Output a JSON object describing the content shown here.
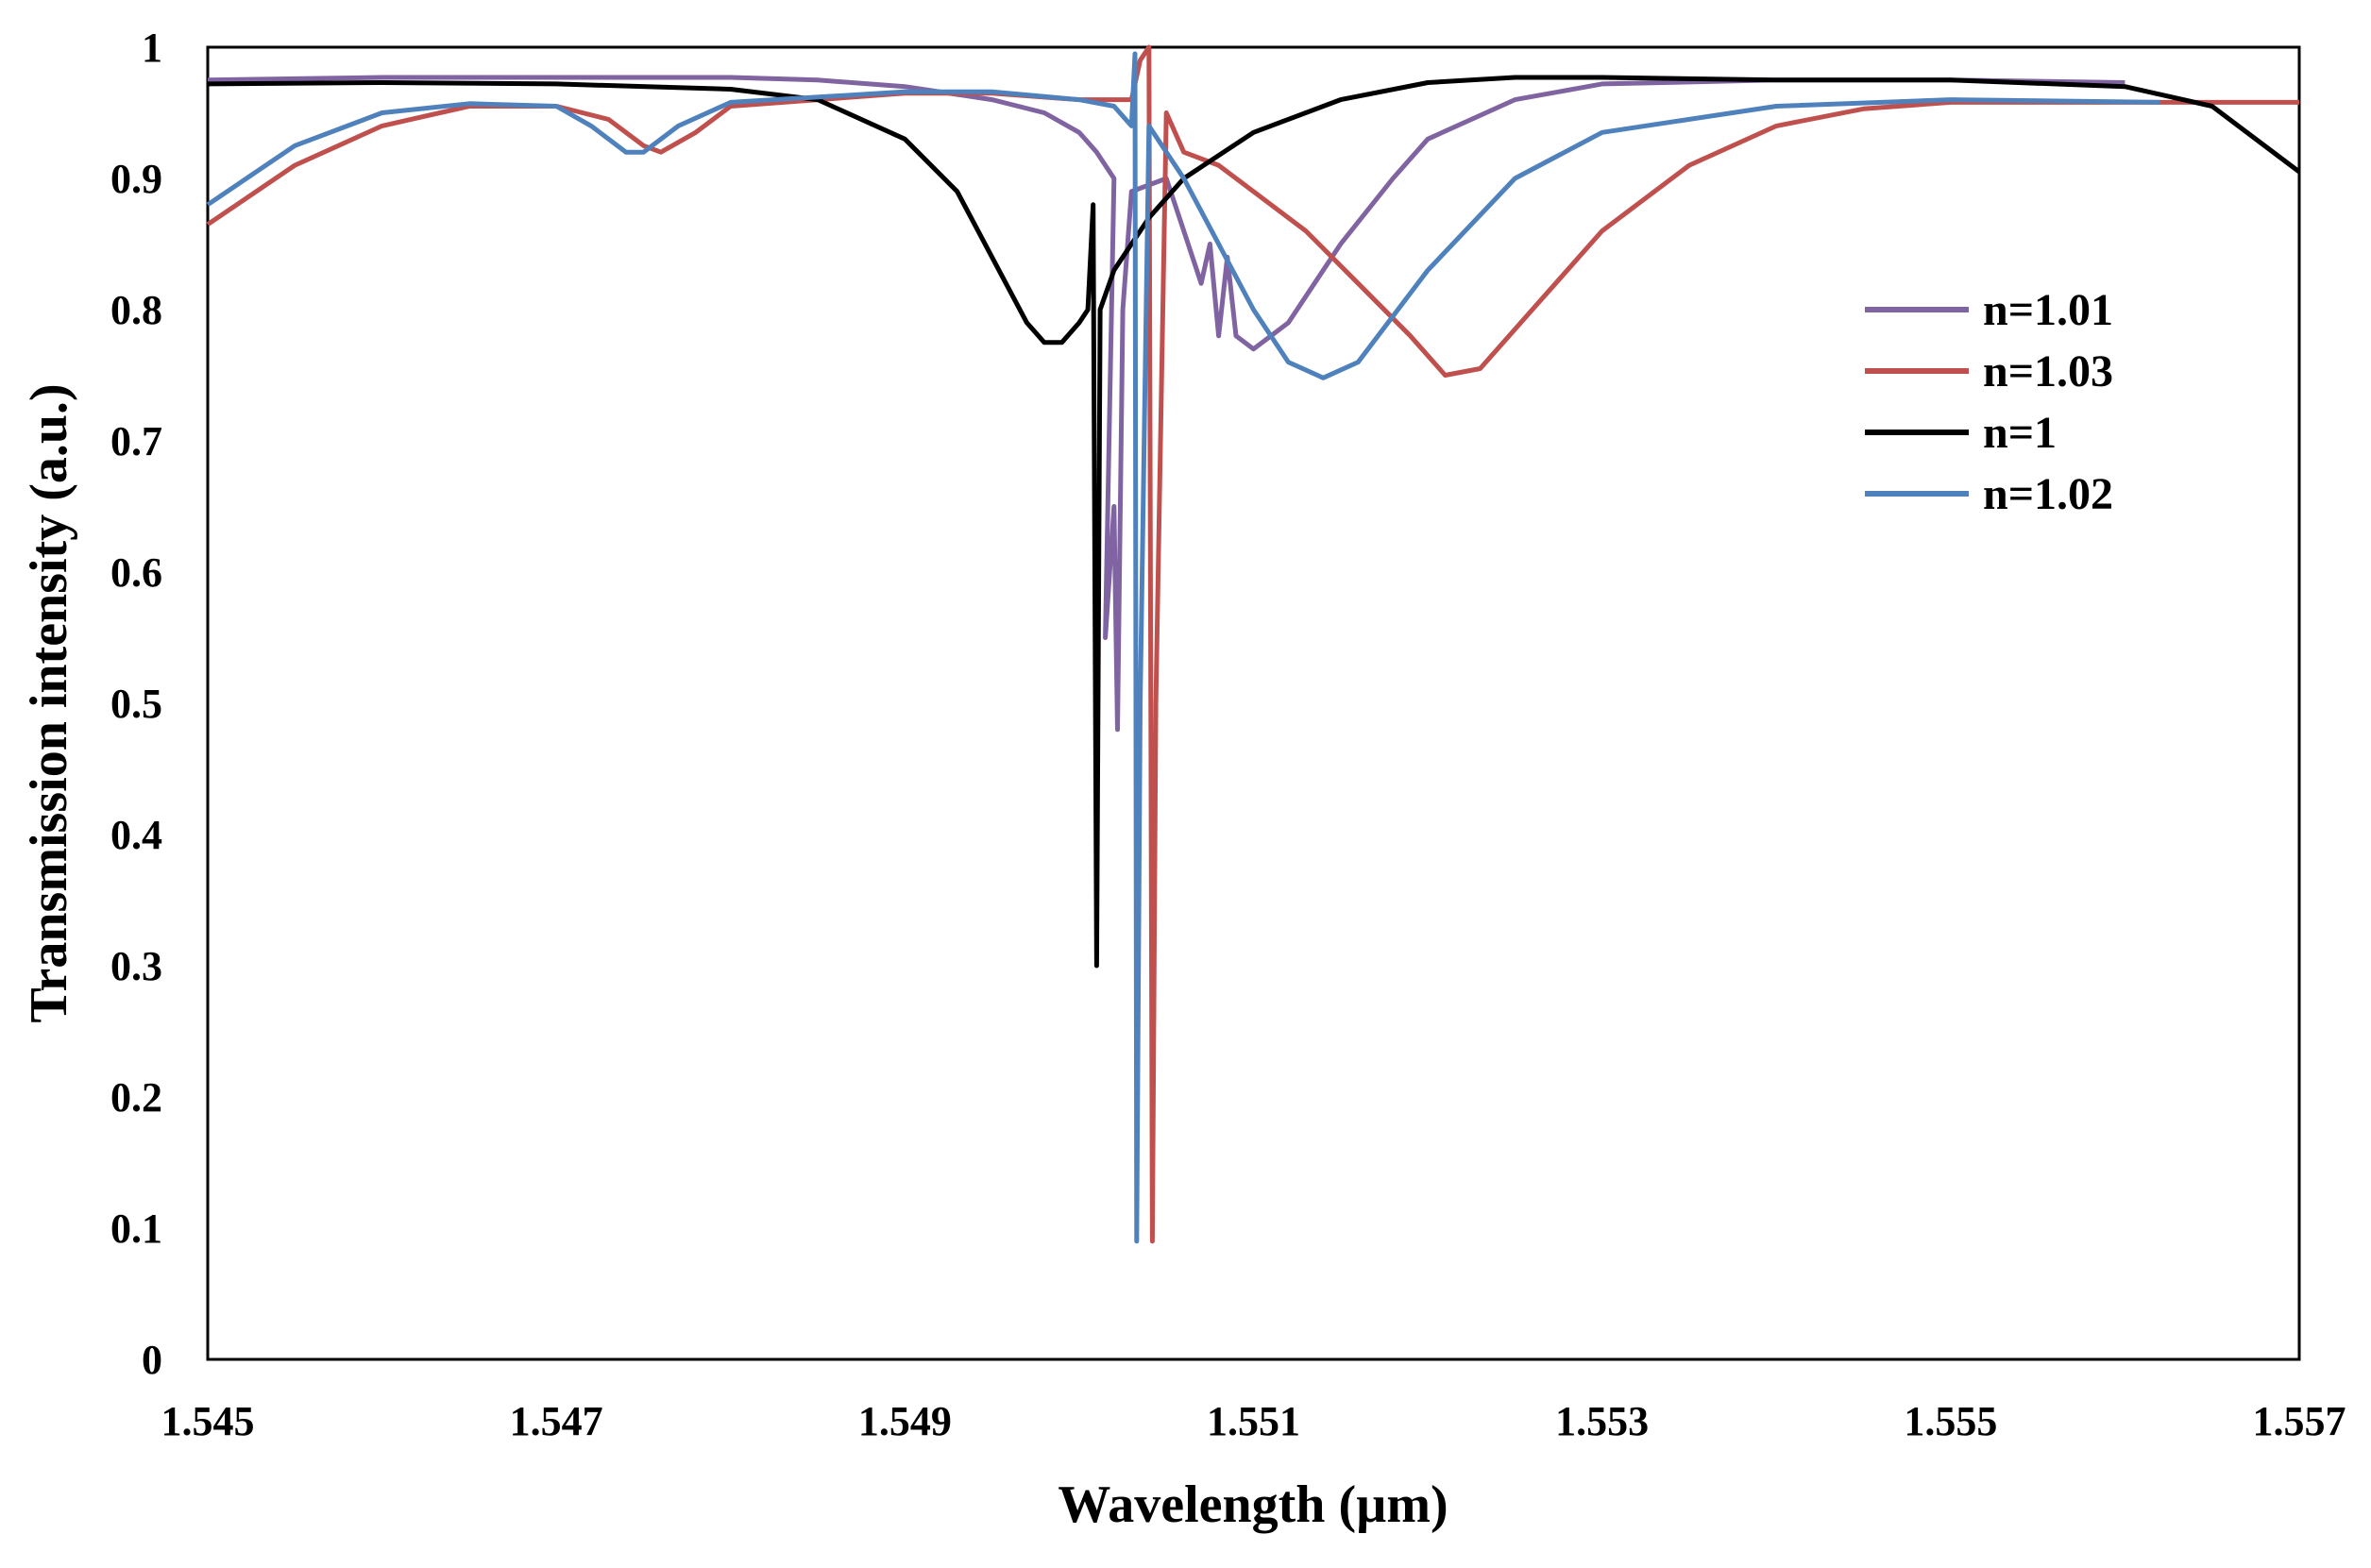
{
  "chart_data": {
    "type": "line",
    "title": "",
    "xlabel": "Wavelength (µm)",
    "ylabel": "Transmission intensity (a.u.)",
    "xlim": [
      1.545,
      1.557
    ],
    "ylim": [
      0,
      1
    ],
    "x_ticks": [
      "1.545",
      "1.547",
      "1.549",
      "1.551",
      "1.553",
      "1.555",
      "1.557"
    ],
    "y_ticks": [
      "0",
      "0.1",
      "0.2",
      "0.3",
      "0.4",
      "0.5",
      "0.6",
      "0.7",
      "0.8",
      "0.9",
      "1"
    ],
    "grid": false,
    "legend_position": "right",
    "series": [
      {
        "name": "n=1.01",
        "color": "#8064a2",
        "points": [
          [
            1.545,
            0.975
          ],
          [
            1.546,
            0.977
          ],
          [
            1.547,
            0.977
          ],
          [
            1.548,
            0.977
          ],
          [
            1.5485,
            0.975
          ],
          [
            1.549,
            0.97
          ],
          [
            1.5495,
            0.96
          ],
          [
            1.5498,
            0.95
          ],
          [
            1.55,
            0.935
          ],
          [
            1.5501,
            0.92
          ],
          [
            1.5502,
            0.9
          ],
          [
            1.55015,
            0.55
          ],
          [
            1.5502,
            0.65
          ],
          [
            1.55022,
            0.48
          ],
          [
            1.55025,
            0.8
          ],
          [
            1.5503,
            0.89
          ],
          [
            1.5505,
            0.9
          ],
          [
            1.5506,
            0.86
          ],
          [
            1.5507,
            0.82
          ],
          [
            1.55075,
            0.85
          ],
          [
            1.5508,
            0.78
          ],
          [
            1.55085,
            0.84
          ],
          [
            1.5509,
            0.78
          ],
          [
            1.551,
            0.77
          ],
          [
            1.5512,
            0.79
          ],
          [
            1.5515,
            0.85
          ],
          [
            1.5518,
            0.9
          ],
          [
            1.552,
            0.93
          ],
          [
            1.5525,
            0.96
          ],
          [
            1.553,
            0.972
          ],
          [
            1.554,
            0.975
          ],
          [
            1.555,
            0.975
          ],
          [
            1.556,
            0.973
          ]
        ]
      },
      {
        "name": "n=1.03",
        "color": "#c0504d",
        "points": [
          [
            1.545,
            0.865
          ],
          [
            1.5455,
            0.91
          ],
          [
            1.546,
            0.94
          ],
          [
            1.5465,
            0.955
          ],
          [
            1.547,
            0.955
          ],
          [
            1.5473,
            0.945
          ],
          [
            1.5475,
            0.925
          ],
          [
            1.5476,
            0.92
          ],
          [
            1.5478,
            0.935
          ],
          [
            1.548,
            0.955
          ],
          [
            1.549,
            0.965
          ],
          [
            1.5495,
            0.965
          ],
          [
            1.55,
            0.96
          ],
          [
            1.5503,
            0.96
          ],
          [
            1.55035,
            0.99
          ],
          [
            1.5504,
            1.0
          ],
          [
            1.55042,
            0.09
          ],
          [
            1.55044,
            0.5
          ],
          [
            1.5505,
            0.95
          ],
          [
            1.5506,
            0.92
          ],
          [
            1.5508,
            0.91
          ],
          [
            1.551,
            0.89
          ],
          [
            1.5513,
            0.86
          ],
          [
            1.5516,
            0.82
          ],
          [
            1.5519,
            0.78
          ],
          [
            1.5521,
            0.75
          ],
          [
            1.5523,
            0.755
          ],
          [
            1.5526,
            0.8
          ],
          [
            1.553,
            0.86
          ],
          [
            1.5535,
            0.91
          ],
          [
            1.554,
            0.94
          ],
          [
            1.5545,
            0.953
          ],
          [
            1.555,
            0.958
          ],
          [
            1.556,
            0.958
          ],
          [
            1.557,
            0.958
          ]
        ]
      },
      {
        "name": "n=1",
        "color": "#000000",
        "points": [
          [
            1.545,
            0.972
          ],
          [
            1.546,
            0.973
          ],
          [
            1.547,
            0.972
          ],
          [
            1.548,
            0.968
          ],
          [
            1.5485,
            0.96
          ],
          [
            1.549,
            0.93
          ],
          [
            1.5493,
            0.89
          ],
          [
            1.5495,
            0.84
          ],
          [
            1.5497,
            0.79
          ],
          [
            1.5498,
            0.775
          ],
          [
            1.5499,
            0.775
          ],
          [
            1.55,
            0.79
          ],
          [
            1.55005,
            0.8
          ],
          [
            1.55008,
            0.88
          ],
          [
            1.5501,
            0.3
          ],
          [
            1.55012,
            0.8
          ],
          [
            1.5502,
            0.83
          ],
          [
            1.5504,
            0.87
          ],
          [
            1.5506,
            0.9
          ],
          [
            1.551,
            0.935
          ],
          [
            1.5515,
            0.96
          ],
          [
            1.552,
            0.973
          ],
          [
            1.5525,
            0.977
          ],
          [
            1.553,
            0.977
          ],
          [
            1.554,
            0.975
          ],
          [
            1.555,
            0.975
          ],
          [
            1.556,
            0.97
          ],
          [
            1.5565,
            0.955
          ],
          [
            1.557,
            0.905
          ]
        ]
      },
      {
        "name": "n=1.02",
        "color": "#4f81bd",
        "points": [
          [
            1.545,
            0.88
          ],
          [
            1.5455,
            0.925
          ],
          [
            1.546,
            0.95
          ],
          [
            1.5465,
            0.957
          ],
          [
            1.547,
            0.955
          ],
          [
            1.5472,
            0.94
          ],
          [
            1.5474,
            0.92
          ],
          [
            1.5475,
            0.92
          ],
          [
            1.5477,
            0.94
          ],
          [
            1.548,
            0.958
          ],
          [
            1.549,
            0.966
          ],
          [
            1.5495,
            0.966
          ],
          [
            1.55,
            0.96
          ],
          [
            1.5502,
            0.955
          ],
          [
            1.5503,
            0.94
          ],
          [
            1.55032,
            0.995
          ],
          [
            1.55033,
            0.09
          ],
          [
            1.55035,
            0.5
          ],
          [
            1.5504,
            0.94
          ],
          [
            1.5506,
            0.9
          ],
          [
            1.5508,
            0.85
          ],
          [
            1.551,
            0.8
          ],
          [
            1.5512,
            0.76
          ],
          [
            1.5514,
            0.748
          ],
          [
            1.5516,
            0.76
          ],
          [
            1.552,
            0.83
          ],
          [
            1.5525,
            0.9
          ],
          [
            1.553,
            0.935
          ],
          [
            1.554,
            0.955
          ],
          [
            1.555,
            0.96
          ],
          [
            1.5562,
            0.958
          ]
        ]
      }
    ]
  }
}
